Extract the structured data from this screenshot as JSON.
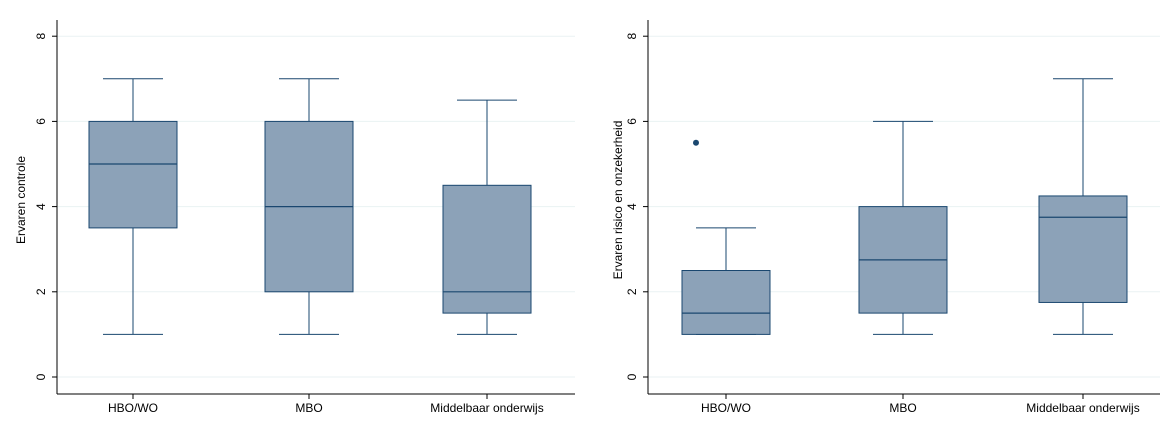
{
  "chart_data": [
    {
      "type": "box",
      "ylabel": "Ervaren controle",
      "categories": [
        "HBO/WO",
        "MBO",
        "Middelbaar onderwijs"
      ],
      "ylim": [
        0,
        8
      ],
      "yticks": [
        "0",
        "2",
        "4",
        "6",
        "8"
      ],
      "grid": true,
      "boxes": [
        {
          "whisker_low": 1,
          "q1": 3.5,
          "median": 5,
          "q3": 6,
          "whisker_high": 7,
          "outliers": []
        },
        {
          "whisker_low": 1,
          "q1": 2,
          "median": 4,
          "q3": 6,
          "whisker_high": 7,
          "outliers": []
        },
        {
          "whisker_low": 1,
          "q1": 1.5,
          "median": 2,
          "q3": 4.5,
          "whisker_high": 6.5,
          "outliers": []
        }
      ]
    },
    {
      "type": "box",
      "ylabel": "Ervaren risico en onzekerheid",
      "categories": [
        "HBO/WO",
        "MBO",
        "Middelbaar onderwijs"
      ],
      "ylim": [
        0,
        8
      ],
      "yticks": [
        "0",
        "2",
        "4",
        "6",
        "8"
      ],
      "grid": true,
      "boxes": [
        {
          "whisker_low": 1,
          "q1": 1,
          "median": 1.5,
          "q3": 2.5,
          "whisker_high": 3.5,
          "outliers": [
            5.5
          ]
        },
        {
          "whisker_low": 1,
          "q1": 1.5,
          "median": 2.75,
          "q3": 4,
          "whisker_high": 6,
          "outliers": []
        },
        {
          "whisker_low": 1,
          "q1": 1.75,
          "median": 3.75,
          "q3": 4.25,
          "whisker_high": 7,
          "outliers": []
        }
      ]
    }
  ],
  "colors": {
    "box_fill": "#8ca2b8",
    "box_stroke": "#1a476f",
    "grid": "#eaf2f3",
    "axis": "#000000",
    "outlier": "#1a476f"
  }
}
